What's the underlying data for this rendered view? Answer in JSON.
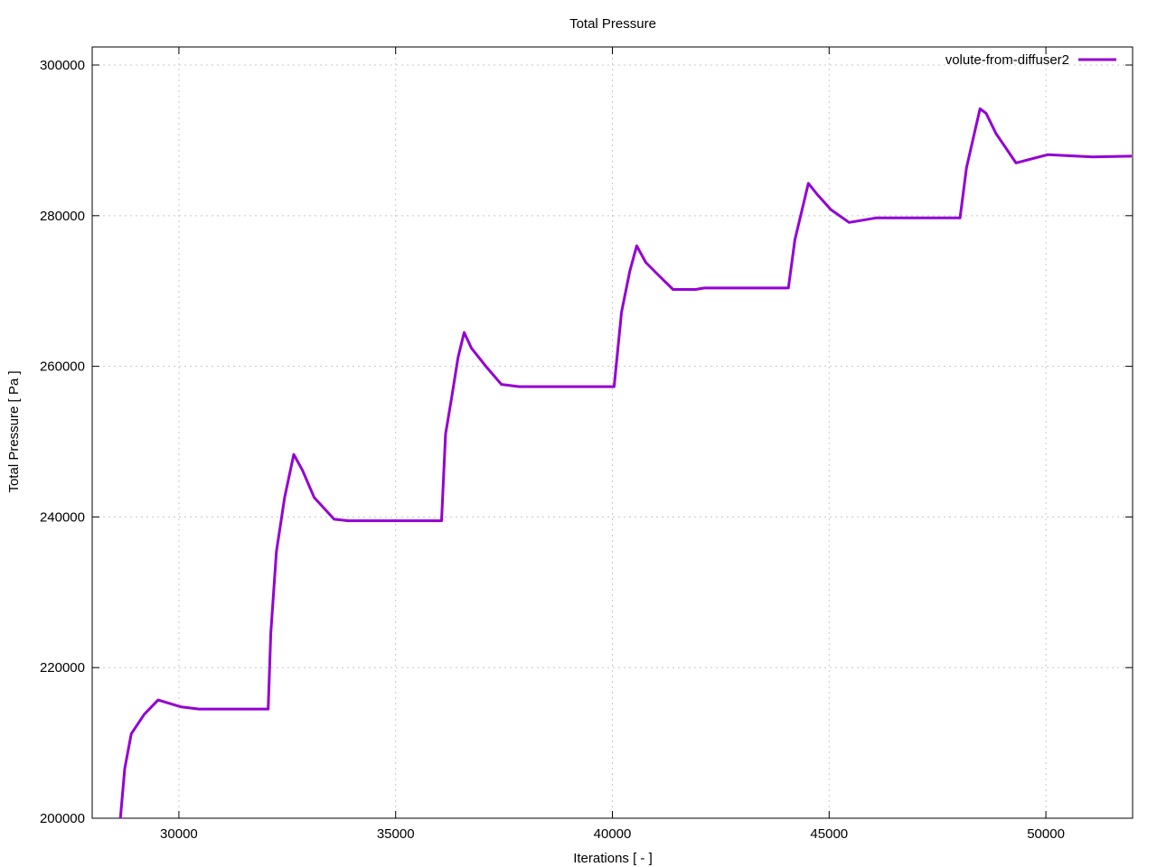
{
  "chart_data": {
    "type": "line",
    "title": "Total Pressure",
    "xlabel": "Iterations [ - ]",
    "ylabel": "Total Pressure [ Pa ]",
    "xlim": [
      28000,
      52000
    ],
    "xticks": [
      30000,
      35000,
      40000,
      45000,
      50000
    ],
    "ylim": [
      200000,
      302400
    ],
    "yticks": [
      200000,
      220000,
      240000,
      260000,
      280000,
      300000
    ],
    "grid": true,
    "legend": "top-right",
    "x": [
      28650,
      28750,
      28900,
      29200,
      29520,
      30040,
      30460,
      32060,
      32120,
      32250,
      32440,
      32650,
      32850,
      33120,
      33580,
      33900,
      36060,
      36150,
      36290,
      36440,
      36580,
      36750,
      37080,
      37440,
      37850,
      40040,
      40210,
      40400,
      40560,
      40770,
      41080,
      41400,
      41920,
      42120,
      44060,
      44210,
      44520,
      44730,
      45040,
      45460,
      46080,
      48020,
      48170,
      48480,
      48620,
      48850,
      49310,
      50040,
      51080,
      51980
    ],
    "series": [
      {
        "name": "volute-from-diffuser2",
        "color": "#9400d3",
        "values": [
          200000,
          206600,
          211200,
          213800,
          215700,
          214800,
          214500,
          214500,
          224600,
          235400,
          242600,
          248300,
          246200,
          242600,
          239700,
          239500,
          239500,
          251000,
          255800,
          261200,
          264500,
          262400,
          260000,
          257600,
          257300,
          257300,
          267200,
          272600,
          276000,
          273800,
          272000,
          270200,
          270200,
          270400,
          270400,
          276800,
          284300,
          282800,
          280800,
          279100,
          279700,
          279700,
          286400,
          294200,
          293600,
          290900,
          287000,
          288100,
          287800,
          287900
        ]
      }
    ]
  }
}
